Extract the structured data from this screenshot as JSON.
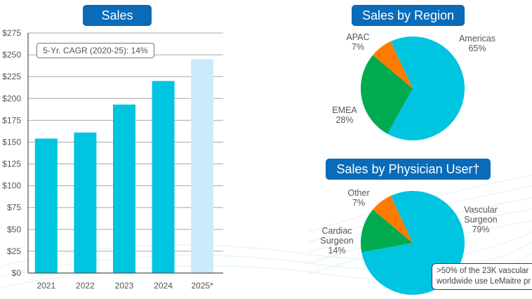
{
  "colors": {
    "title_bg": "#0a6bb8",
    "bar_actual": "#00c5e0",
    "bar_projected": "#cdeafb",
    "cyan": "#00c5e0",
    "green": "#00aa4f",
    "orange": "#ff7a00"
  },
  "chart_data": [
    {
      "type": "bar",
      "title": "Sales",
      "categories": [
        "2021",
        "2022",
        "2023",
        "2024",
        "2025*"
      ],
      "values": [
        154,
        161,
        193,
        220,
        245
      ],
      "projected": [
        false,
        false,
        false,
        false,
        true
      ],
      "ylim": [
        0,
        275
      ],
      "yticks": [
        0,
        25,
        50,
        75,
        100,
        125,
        150,
        175,
        200,
        225,
        250,
        275
      ],
      "ytick_labels": [
        "$0",
        "$25",
        "$50",
        "$75",
        "$100",
        "$125",
        "$150",
        "$175",
        "$200",
        "$225",
        "$250",
        "$275"
      ],
      "xlabel": "",
      "ylabel": "",
      "grid": true,
      "annotation": "5-Yr. CAGR (2020-25): 14%"
    },
    {
      "type": "pie",
      "title": "Sales by Region",
      "slices": [
        {
          "label": "Americas",
          "value": 65,
          "display": "65%",
          "color": "#00c5e0"
        },
        {
          "label": "EMEA",
          "value": 28,
          "display": "28%",
          "color": "#00aa4f"
        },
        {
          "label": "APAC",
          "value": 7,
          "display": "7%",
          "color": "#ff7a00"
        }
      ]
    },
    {
      "type": "pie",
      "title": "Sales by Physician User†",
      "slices": [
        {
          "label": "Vascular Surgeon",
          "label_lines": [
            "Vascular",
            "Surgeon"
          ],
          "value": 79,
          "display": "79%",
          "color": "#00c5e0"
        },
        {
          "label": "Cardiac Surgeon",
          "label_lines": [
            "Cardiac",
            "Surgeon"
          ],
          "value": 14,
          "display": "14%",
          "color": "#00aa4f"
        },
        {
          "label": "Other",
          "label_lines": [
            "Other"
          ],
          "value": 7,
          "display": "7%",
          "color": "#ff7a00"
        }
      ],
      "callout_lines": [
        ">50% of the 23K vascular",
        "worldwide use LeMaitre pr"
      ]
    }
  ]
}
